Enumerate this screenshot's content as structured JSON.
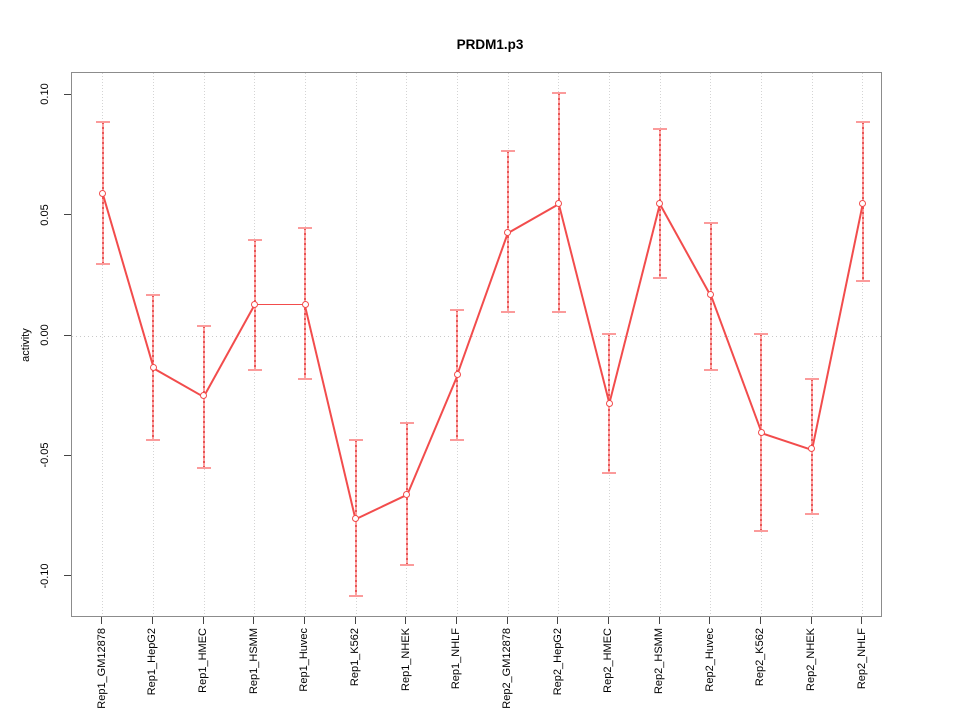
{
  "title": "PRDM1.p3",
  "chart_data": {
    "type": "line",
    "title": "PRDM1.p3",
    "xlabel": "",
    "ylabel": "activity",
    "legend": "none",
    "grid": "vertical dotted gridlines at each category; dotted horizontal line at y=0",
    "ylim": [
      -0.117,
      0.109
    ],
    "yticks": [
      0.1,
      0.05,
      0.0,
      -0.05,
      -0.1
    ],
    "ytick_labels": [
      "0.10",
      "0.05",
      "0.00",
      "-0.05",
      "-0.10"
    ],
    "categories": [
      "Rep1_GM12878",
      "Rep1_HepG2",
      "Rep1_HMEC",
      "Rep1_HSMM",
      "Rep1_Huvec",
      "Rep1_K562",
      "Rep1_NHEK",
      "Rep1_NHLF",
      "Rep2_GM12878",
      "Rep2_HepG2",
      "Rep2_HMEC",
      "Rep2_HSMM",
      "Rep2_Huvec",
      "Rep2_K562",
      "Rep2_NHEK",
      "Rep2_NHLF"
    ],
    "series": [
      {
        "name": "activity",
        "values": [
          0.059,
          -0.013,
          -0.025,
          0.013,
          0.013,
          -0.076,
          -0.066,
          -0.016,
          0.043,
          0.055,
          -0.028,
          0.055,
          0.017,
          -0.04,
          -0.047,
          0.055
        ],
        "error_upper": [
          0.089,
          0.017,
          0.004,
          0.04,
          0.045,
          -0.043,
          -0.036,
          0.011,
          0.077,
          0.101,
          0.001,
          0.086,
          0.047,
          0.001,
          -0.018,
          0.089
        ],
        "error_lower": [
          0.03,
          -0.043,
          -0.055,
          -0.014,
          -0.018,
          -0.108,
          -0.095,
          -0.043,
          0.01,
          0.01,
          -0.057,
          0.024,
          -0.014,
          -0.081,
          -0.074,
          0.023
        ]
      }
    ],
    "marker": "open-circle",
    "colors": {
      "line": "#f24c4c",
      "marker": "#f24c4c",
      "error_bar_light": "#fca1a1",
      "error_bar_dash": "#e85555",
      "error_cap": "#fb9b9b",
      "gridline": "#d4d4d4",
      "zero_line": "#c9c9c9",
      "box": "#8c8c8c",
      "tick": "#444444",
      "text": "#000000"
    }
  }
}
